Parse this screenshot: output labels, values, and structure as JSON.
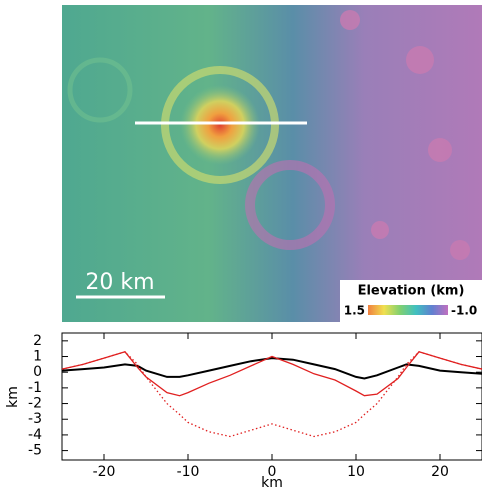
{
  "chart_data": [
    {
      "type": "map",
      "scale_bar": "20 km",
      "colorbar": {
        "title": "Elevation (km)",
        "clim": [
          1.5,
          {
            "value": -1.0,
            "label": "-1.0"
          }
        ],
        "ticks": [
          1.5,
          {
            "value": -1.0,
            "label": "-1.0"
          }
        ]
      }
    },
    {
      "type": "line",
      "xlabel": "km",
      "ylabel": "km",
      "x": [
        -25,
        -22.5,
        -20,
        -17.5,
        -16,
        -15,
        -12.5,
        -11,
        -10,
        -7.5,
        -5,
        -2.5,
        0,
        2.5,
        5,
        7.5,
        10,
        11,
        12.5,
        15,
        16,
        17.5,
        20,
        22.5,
        25
      ],
      "series": [
        {
          "color": "#000000",
          "line_style": "solid",
          "values": [
            0.1,
            0.2,
            0.3,
            0.5,
            0.4,
            0.1,
            -0.3,
            -0.3,
            -0.2,
            0.1,
            0.4,
            0.7,
            0.9,
            0.8,
            0.5,
            0.2,
            -0.3,
            -0.4,
            -0.2,
            0.3,
            0.5,
            0.4,
            0.1,
            0.0,
            -0.1
          ]
        },
        {
          "color": "#e02020",
          "line_style": "solid",
          "values": [
            0.2,
            0.5,
            0.9,
            1.3,
            0.3,
            -0.3,
            -1.3,
            -1.5,
            -1.3,
            -0.7,
            -0.2,
            0.4,
            1.0,
            0.5,
            -0.1,
            -0.5,
            -1.2,
            -1.5,
            -1.4,
            -0.4,
            0.3,
            1.3,
            0.9,
            0.5,
            0.2
          ]
        },
        {
          "color": "#e02020",
          "line_style": "dotted",
          "values": [
            0.2,
            0.5,
            0.9,
            1.3,
            0.5,
            -0.3,
            -2.0,
            -2.7,
            -3.2,
            -3.8,
            -4.1,
            -3.7,
            -3.3,
            -3.7,
            -4.1,
            -3.8,
            -3.2,
            -2.7,
            -2.0,
            -0.3,
            0.5,
            1.3,
            0.9,
            0.5,
            0.2
          ]
        }
      ],
      "xlim": [
        -25,
        25
      ],
      "xticks": [
        -20,
        -10,
        0,
        10,
        20
      ],
      "ylim": [
        -5.6,
        2.5
      ],
      "yticks": [
        2,
        1,
        0,
        -1,
        -2,
        -3,
        -4,
        -5
      ]
    }
  ]
}
